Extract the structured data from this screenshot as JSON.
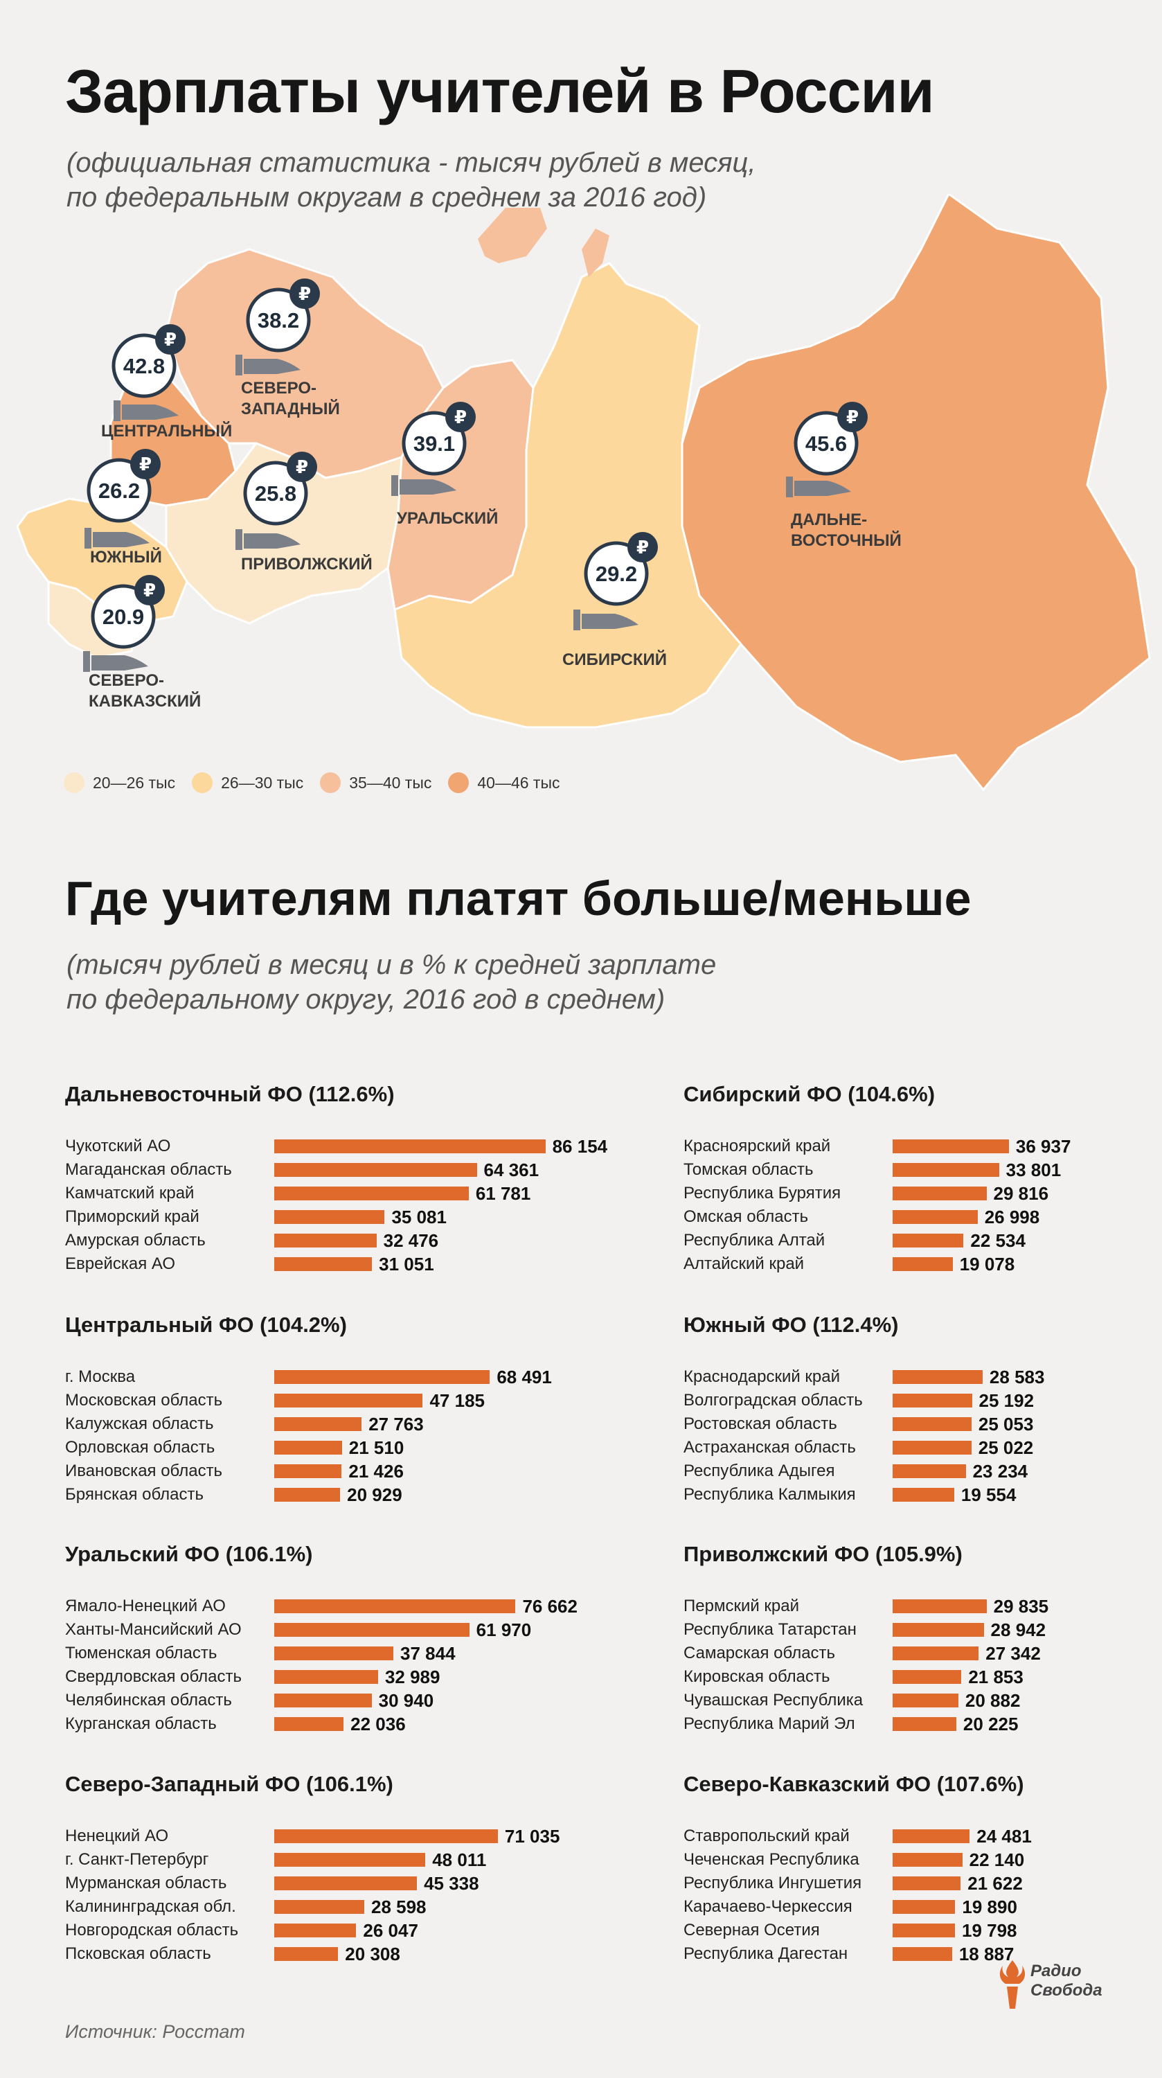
{
  "title": "Зарплаты учителей в России",
  "subtitle_lines": [
    "(официальная статистика - тысяч рублей в месяц,",
    "по федеральным округам в среднем за 2016 год)"
  ],
  "colors": {
    "c20_26": "#fbe8cb",
    "c26_30": "#fcd89c",
    "c35_40": "#f6c09c",
    "c40_46": "#f1a571",
    "bar": "#e06a2c",
    "badge_border": "#2b3a4a"
  },
  "map": {
    "regions": [
      {
        "key": "far_east",
        "label": "ДАЛЬНЕ-\nВОСТОЧНЫЙ",
        "value": "45.6",
        "range": "c40_46"
      },
      {
        "key": "siberia",
        "label": "СИБИРСКИЙ",
        "value": "29.2",
        "range": "c26_30"
      },
      {
        "key": "ural",
        "label": "УРАЛЬСКИЙ",
        "value": "39.1",
        "range": "c35_40"
      },
      {
        "key": "volga",
        "label": "ПРИВОЛЖСКИЙ",
        "value": "25.8",
        "range": "c20_26"
      },
      {
        "key": "northwest",
        "label": "СЕВЕРО-\nЗАПАДНЫЙ",
        "value": "38.2",
        "range": "c35_40"
      },
      {
        "key": "central",
        "label": "ЦЕНТРАЛЬНЫЙ",
        "value": "42.8",
        "range": "c40_46"
      },
      {
        "key": "south",
        "label": "ЮЖНЫЙ",
        "value": "26.2",
        "range": "c26_30"
      },
      {
        "key": "ncaucasus",
        "label": "СЕВЕРО-\nКАВКАЗСКИЙ",
        "value": "20.9",
        "range": "c20_26"
      }
    ]
  },
  "legend": [
    {
      "label": "20—26 тыс",
      "color": "#fbe8cb"
    },
    {
      "label": "26—30 тыс",
      "color": "#fcd89c"
    },
    {
      "label": "35—40 тыс",
      "color": "#f6c09c"
    },
    {
      "label": "40—46 тыс",
      "color": "#f1a571"
    }
  ],
  "title2": "Где учителям платят больше/меньше",
  "subtitle2_lines": [
    "(тысяч рублей в месяц и в % к средней зарплате",
    "по федеральному округу, 2016 год в среднем)"
  ],
  "chart_data": {
    "type": "bar",
    "orientation": "horizontal",
    "xlim": [
      0,
      88000
    ],
    "panels": [
      {
        "title": "Дальневосточный ФО (112.6%)",
        "categories": [
          "Чукотский АО",
          "Магаданская область",
          "Камчатский край",
          "Приморский край",
          "Амурская область",
          "Еврейская АО"
        ],
        "values": [
          86154,
          64361,
          61781,
          35081,
          32476,
          31051
        ],
        "labels": [
          "86 154",
          "64 361",
          "61 781",
          "35 081",
          "32 476",
          "31 051"
        ]
      },
      {
        "title": "Сибирский ФО (104.6%)",
        "categories": [
          "Красноярский край",
          "Томская область",
          "Республика Бурятия",
          "Омская область",
          "Республика Алтай",
          "Алтайский край"
        ],
        "values": [
          36937,
          33801,
          29816,
          26998,
          22534,
          19078
        ],
        "labels": [
          "36 937",
          "33 801",
          "29 816",
          "26 998",
          "22 534",
          "19 078"
        ]
      },
      {
        "title": "Центральный ФО (104.2%)",
        "categories": [
          "г. Москва",
          "Московская область",
          "Калужская область",
          "Орловская область",
          "Ивановская область",
          "Брянская область"
        ],
        "values": [
          68491,
          47185,
          27763,
          21510,
          21426,
          20929
        ],
        "labels": [
          "68 491",
          "47 185",
          "27 763",
          "21 510",
          "21 426",
          "20 929"
        ]
      },
      {
        "title": "Южный ФО (112.4%)",
        "categories": [
          "Краснодарский край",
          "Волгоградская область",
          "Ростовская область",
          "Астраханская область",
          "Республика Адыгея",
          "Республика Калмыкия"
        ],
        "values": [
          28583,
          25192,
          25053,
          25022,
          23234,
          19554
        ],
        "labels": [
          "28 583",
          "25 192",
          "25 053",
          "25 022",
          "23 234",
          "19 554"
        ]
      },
      {
        "title": "Уральский ФО (106.1%)",
        "categories": [
          "Ямало-Ненецкий АО",
          "Ханты-Мансийский АО",
          "Тюменская область",
          "Свердловская область",
          "Челябинская область",
          "Курганская область"
        ],
        "values": [
          76662,
          61970,
          37844,
          32989,
          30940,
          22036
        ],
        "labels": [
          "76 662",
          "61 970",
          "37 844",
          "32 989",
          "30 940",
          "22 036"
        ]
      },
      {
        "title": "Приволжский ФО (105.9%)",
        "categories": [
          "Пермский край",
          "Республика Татарстан",
          "Самарская область",
          "Кировская область",
          "Чувашская Республика",
          "Республика Марий Эл"
        ],
        "values": [
          29835,
          28942,
          27342,
          21853,
          20882,
          20225
        ],
        "labels": [
          "29 835",
          "28 942",
          "27 342",
          "21 853",
          "20 882",
          "20 225"
        ]
      },
      {
        "title": "Северо-Западный ФО (106.1%)",
        "categories": [
          "Ненецкий АО",
          "г. Санкт-Петербург",
          "Мурманская область",
          "Калининградская обл.",
          "Новгородская область",
          "Псковская область"
        ],
        "values": [
          71035,
          48011,
          45338,
          28598,
          26047,
          20308
        ],
        "labels": [
          "71 035",
          "48 011",
          "45 338",
          "28 598",
          "26 047",
          "20 308"
        ]
      },
      {
        "title": "Северо-Кавказский ФО (107.6%)",
        "categories": [
          "Ставропольский край",
          "Чеченская Республика",
          "Республика Ингушетия",
          "Карачаево-Черкессия",
          "Северная Осетия",
          "Республика Дагестан"
        ],
        "values": [
          24481,
          22140,
          21622,
          19890,
          19798,
          18887
        ],
        "labels": [
          "24 481",
          "22 140",
          "21 622",
          "19 890",
          "19 798",
          "18 887"
        ]
      }
    ]
  },
  "source": "Источник: Росстат",
  "logo_lines": [
    "Радио",
    "Свобода"
  ]
}
